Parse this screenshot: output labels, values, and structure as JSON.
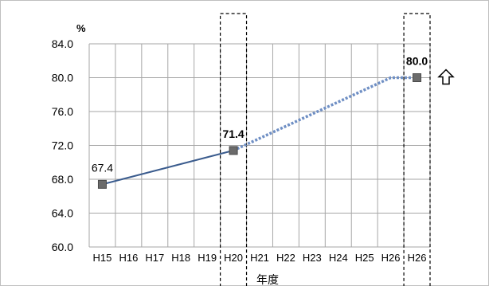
{
  "chart_data": {
    "type": "line",
    "y_unit": "%",
    "xlabel": "年度",
    "categories": [
      "H15",
      "H16",
      "H17",
      "H18",
      "H19",
      "H20",
      "H21",
      "H22",
      "H23",
      "H24",
      "H25",
      "H26",
      "H26"
    ],
    "ylim": [
      60.0,
      84.0
    ],
    "yticks": [
      "60.0",
      "64.0",
      "68.0",
      "72.0",
      "76.0",
      "80.0",
      "84.0"
    ],
    "grid": true,
    "series": [
      {
        "style": "solid",
        "color": "#3b5c8e",
        "points": [
          {
            "x": "H15",
            "y": 67.4
          },
          {
            "x": "H20",
            "y": 71.4
          }
        ]
      },
      {
        "style": "dotted",
        "color": "#6f8fc4",
        "points": [
          {
            "x": "H20",
            "y": 71.4
          },
          {
            "x": "H26",
            "y": 80.0
          },
          {
            "x": "H26",
            "y": 80.0
          }
        ]
      }
    ],
    "markers": [
      {
        "index": 0,
        "y": 67.4
      },
      {
        "index": 5,
        "y": 71.4
      },
      {
        "index": 12,
        "y": 80.0
      }
    ],
    "data_labels": [
      {
        "index": 0,
        "y": 67.4,
        "text": "67.4",
        "bold": false
      },
      {
        "index": 5,
        "y": 71.4,
        "text": "71.4",
        "bold": true
      },
      {
        "index": 12,
        "y": 80.0,
        "text": "80.0",
        "bold": true
      }
    ],
    "highlight_columns": [
      5,
      12
    ],
    "arrow_icon": "up-arrow-outline-icon"
  }
}
